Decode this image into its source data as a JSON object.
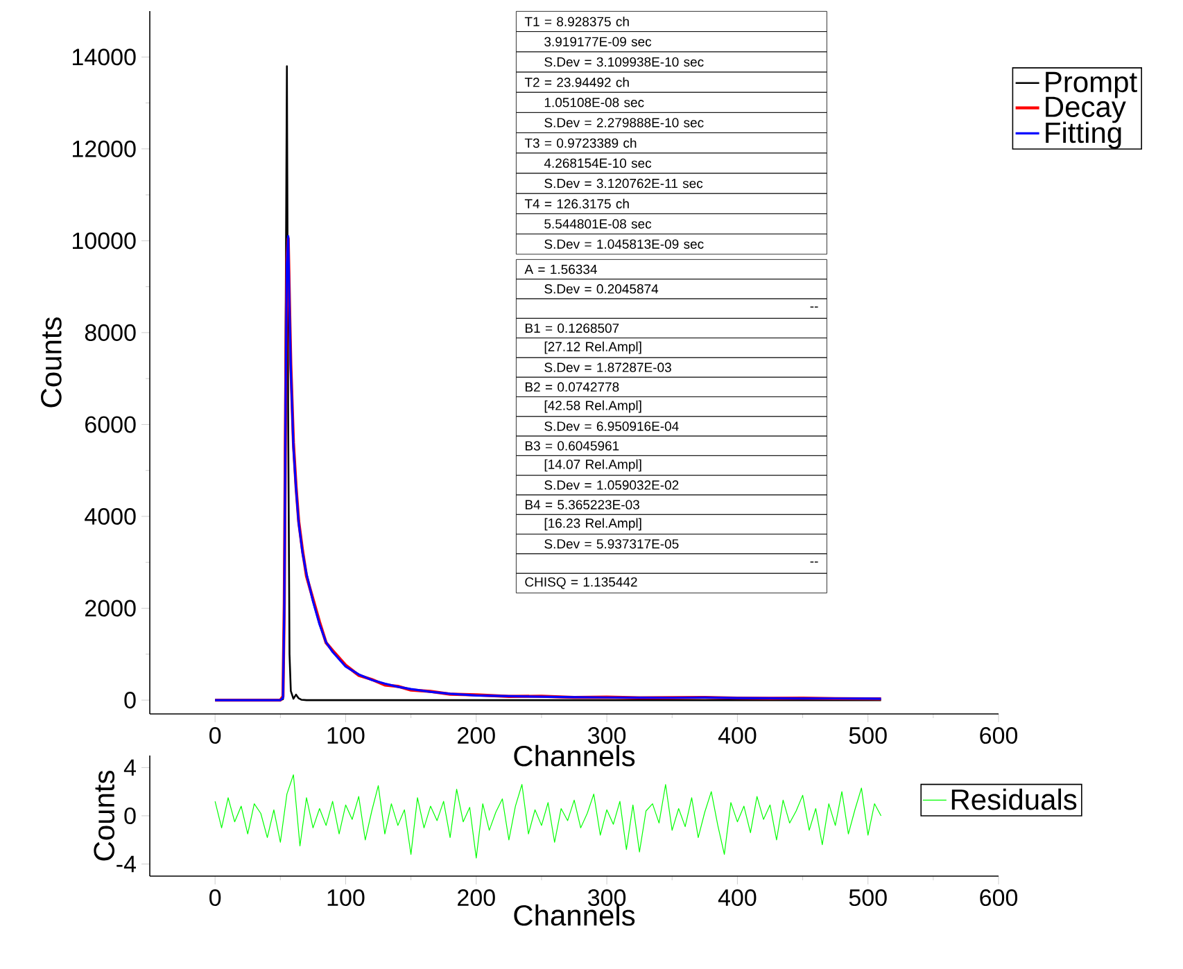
{
  "chart_data": [
    {
      "type": "line",
      "xlabel": "Channels",
      "ylabel": "Counts",
      "xlim": [
        -50,
        600
      ],
      "ylim": [
        -300,
        15000
      ],
      "xticks": [
        0,
        100,
        200,
        300,
        400,
        500,
        600
      ],
      "yticks": [
        0,
        2000,
        4000,
        6000,
        8000,
        10000,
        12000,
        14000
      ],
      "legend": "top right",
      "series": [
        {
          "name": "Prompt",
          "color": "#000000",
          "x": [
            0,
            50,
            52,
            53,
            54,
            55,
            56,
            57,
            58,
            60,
            62,
            64,
            66,
            70,
            100,
            200,
            300,
            400,
            510
          ],
          "values": [
            0,
            0,
            20,
            2000,
            8000,
            13800,
            6000,
            1000,
            200,
            30,
            120,
            40,
            10,
            0,
            0,
            0,
            0,
            0,
            0
          ]
        },
        {
          "name": "Decay",
          "color": "#ff0000",
          "x": [
            0,
            48,
            50,
            52,
            53,
            54,
            55,
            56,
            57,
            58,
            60,
            62,
            64,
            67,
            70,
            75,
            80,
            85,
            90,
            100,
            110,
            120,
            130,
            140,
            150,
            165,
            180,
            200,
            225,
            250,
            275,
            300,
            325,
            350,
            375,
            400,
            425,
            450,
            475,
            500,
            510
          ],
          "values": [
            0,
            0,
            0,
            80,
            2100,
            6400,
            9600,
            10050,
            8600,
            7300,
            5600,
            4650,
            3900,
            3250,
            2700,
            2200,
            1700,
            1250,
            1080,
            760,
            540,
            450,
            330,
            300,
            220,
            190,
            130,
            115,
            80,
            85,
            60,
            65,
            50,
            55,
            60,
            45,
            40,
            42,
            33,
            30,
            28
          ]
        },
        {
          "name": "Fitting",
          "color": "#0000ff",
          "x": [
            0,
            48,
            50,
            52,
            53,
            54,
            55,
            56,
            57,
            58,
            60,
            62,
            64,
            67,
            70,
            75,
            80,
            85,
            90,
            100,
            110,
            120,
            130,
            140,
            150,
            165,
            180,
            200,
            225,
            250,
            275,
            300,
            325,
            350,
            375,
            400,
            425,
            450,
            475,
            500,
            510
          ],
          "values": [
            0,
            0,
            0,
            50,
            2000,
            6500,
            9500,
            10100,
            8500,
            7200,
            5500,
            4600,
            3860,
            3200,
            2750,
            2150,
            1650,
            1260,
            1050,
            730,
            560,
            440,
            360,
            290,
            240,
            180,
            140,
            100,
            85,
            75,
            65,
            58,
            52,
            50,
            55,
            45,
            42,
            38,
            35,
            32,
            30
          ]
        }
      ],
      "annotations": [
        "T1 = 8.928375 ch",
        "3.919177E-09 sec",
        "S.Dev = 3.109938E-10 sec",
        "T2 = 23.94492 ch",
        "1.05108E-08 sec",
        "S.Dev = 2.279888E-10 sec",
        "T3 = 0.9723389 ch",
        "4.268154E-10 sec",
        "S.Dev = 3.120762E-11 sec",
        "T4 = 126.3175 ch",
        "5.544801E-08 sec",
        "S.Dev = 1.045813E-09 sec",
        "A  = 1.56334",
        "S.Dev = 0.2045874",
        "--",
        "B1 = 0.1268507",
        "[27.12 Rel.Ampl]",
        "S.Dev = 1.87287E-03",
        "B2 = 0.0742778",
        "[42.58 Rel.Ampl]",
        "S.Dev = 6.950916E-04",
        "B3 = 0.6045961",
        "[14.07 Rel.Ampl]",
        "S.Dev = 1.059032E-02",
        "B4 = 5.365223E-03",
        "[16.23 Rel.Ampl]",
        "S.Dev = 5.937317E-05",
        "--",
        "CHISQ = 1.135442"
      ]
    },
    {
      "type": "line",
      "xlabel": "Channels",
      "ylabel": "Counts",
      "xlim": [
        -50,
        600
      ],
      "ylim": [
        -5,
        5
      ],
      "xticks": [
        0,
        100,
        200,
        300,
        400,
        500,
        600
      ],
      "yticks": [
        -4,
        0,
        4
      ],
      "legend": "right",
      "series": [
        {
          "name": "Residuals",
          "color": "#00ff00",
          "x": [
            0,
            5,
            10,
            15,
            20,
            25,
            30,
            35,
            40,
            45,
            50,
            55,
            60,
            65,
            70,
            75,
            80,
            85,
            90,
            95,
            100,
            105,
            110,
            115,
            120,
            125,
            130,
            135,
            140,
            145,
            150,
            155,
            160,
            165,
            170,
            175,
            180,
            185,
            190,
            195,
            200,
            205,
            210,
            215,
            220,
            225,
            230,
            235,
            240,
            245,
            250,
            255,
            260,
            265,
            270,
            275,
            280,
            285,
            290,
            295,
            300,
            305,
            310,
            315,
            320,
            325,
            330,
            335,
            340,
            345,
            350,
            355,
            360,
            365,
            370,
            375,
            380,
            385,
            390,
            395,
            400,
            405,
            410,
            415,
            420,
            425,
            430,
            435,
            440,
            445,
            450,
            455,
            460,
            465,
            470,
            475,
            480,
            485,
            490,
            495,
            500,
            505,
            510
          ],
          "values": [
            1.2,
            -1.0,
            1.5,
            -0.5,
            0.8,
            -1.5,
            1.0,
            0.2,
            -1.8,
            0.5,
            -2.2,
            1.8,
            3.4,
            -2.5,
            1.5,
            -1.0,
            0.6,
            -0.8,
            1.2,
            -1.5,
            0.9,
            -0.3,
            1.6,
            -2.0,
            0.4,
            2.5,
            -1.5,
            1.0,
            -0.8,
            0.5,
            -3.2,
            1.5,
            -1.0,
            0.8,
            -0.4,
            1.2,
            -1.8,
            2.2,
            -0.5,
            0.7,
            -3.5,
            1.0,
            -1.2,
            0.3,
            1.4,
            -2.0,
            0.8,
            2.6,
            -1.5,
            0.5,
            -0.8,
            1.1,
            -2.2,
            0.6,
            -0.4,
            1.3,
            -1.0,
            0.2,
            1.8,
            -1.6,
            0.5,
            -0.7,
            1.2,
            -2.8,
            0.9,
            -3.0,
            0.4,
            1.0,
            -0.6,
            2.6,
            -1.2,
            0.6,
            -0.9,
            1.5,
            -1.8,
            0.3,
            2.0,
            -0.8,
            -3.2,
            1.1,
            -0.5,
            0.8,
            -1.4,
            1.6,
            -0.3,
            0.9,
            -2.0,
            1.3,
            -0.6,
            0.4,
            1.7,
            -1.2,
            0.6,
            -2.4,
            1.0,
            -0.8,
            2.0,
            -1.5,
            0.5,
            2.3,
            -1.6,
            1.0,
            0.0
          ]
        }
      ]
    }
  ]
}
